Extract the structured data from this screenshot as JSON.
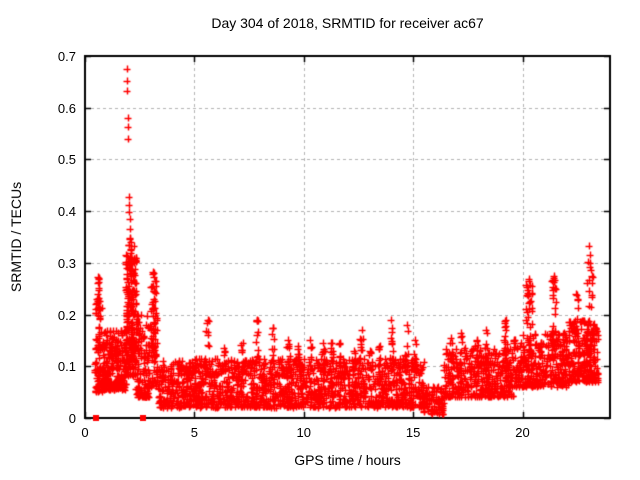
{
  "figure": {
    "background": "#ffffff",
    "text_color": "#000000"
  },
  "chart_data": {
    "type": "scatter",
    "title": "Day 304 of 2018, SRMTID for receiver ac67",
    "xlabel": "GPS time / hours",
    "ylabel": "SRMTID / TECUs",
    "xlim": [
      0,
      24
    ],
    "ylim": [
      0,
      0.7
    ],
    "xticks": [
      0,
      5,
      10,
      15,
      20
    ],
    "yticks": [
      0,
      0.1,
      0.2,
      0.3,
      0.4,
      0.5,
      0.6,
      0.7
    ],
    "grid": true,
    "legend": "none",
    "marker": "plus",
    "marker_color": "#ff0000",
    "grid_color": "#b4b4b4",
    "border_color": "#000000",
    "seed": 304,
    "outliers": [
      [
        1.93,
        0.675
      ],
      [
        1.94,
        0.651
      ],
      [
        1.94,
        0.632
      ],
      [
        1.96,
        0.581
      ],
      [
        1.97,
        0.562
      ],
      [
        1.98,
        0.539
      ],
      [
        2.01,
        0.428
      ],
      [
        2.02,
        0.412
      ],
      [
        2.02,
        0.398
      ],
      [
        2.04,
        0.384
      ],
      [
        2.05,
        0.366
      ],
      [
        2.06,
        0.349
      ],
      [
        2.07,
        0.347
      ],
      [
        2.08,
        0.327
      ],
      [
        2.09,
        0.324
      ],
      [
        2.1,
        0.307
      ],
      [
        2.12,
        0.297
      ],
      [
        0.58,
        0.272
      ],
      [
        0.6,
        0.262
      ],
      [
        0.62,
        0.247
      ],
      [
        0.59,
        0.231
      ],
      [
        0.63,
        0.215
      ],
      [
        3.12,
        0.283
      ],
      [
        3.16,
        0.272
      ],
      [
        20.28,
        0.268
      ],
      [
        20.33,
        0.258
      ],
      [
        20.24,
        0.247
      ],
      [
        21.42,
        0.274
      ],
      [
        21.47,
        0.252
      ],
      [
        21.38,
        0.237
      ],
      [
        22.93,
        0.262
      ],
      [
        22.98,
        0.302
      ],
      [
        23.02,
        0.332
      ],
      [
        23.07,
        0.316
      ],
      [
        23.12,
        0.287
      ]
    ],
    "zero_squares": [
      [
        0.5,
        0
      ],
      [
        2.65,
        0
      ]
    ],
    "bands": [
      {
        "x0": 0.45,
        "x1": 0.8,
        "n": 70,
        "lo": 0.05,
        "hi": 0.25,
        "skew": 1.6
      },
      {
        "x0": 0.8,
        "x1": 1.9,
        "n": 230,
        "lo": 0.055,
        "hi": 0.17,
        "skew": 1.8
      },
      {
        "x0": 1.85,
        "x1": 2.35,
        "n": 170,
        "lo": 0.08,
        "hi": 0.32,
        "skew": 1.3
      },
      {
        "x0": 2.35,
        "x1": 3.0,
        "n": 120,
        "lo": 0.04,
        "hi": 0.2,
        "skew": 1.8
      },
      {
        "x0": 3.0,
        "x1": 3.35,
        "n": 60,
        "lo": 0.06,
        "hi": 0.27,
        "skew": 1.4
      },
      {
        "x0": 3.35,
        "x1": 5.0,
        "n": 210,
        "lo": 0.02,
        "hi": 0.11,
        "skew": 1.5
      },
      {
        "x0": 5.0,
        "x1": 15.5,
        "n": 1250,
        "lo": 0.02,
        "hi": 0.115,
        "skew": 1.4
      },
      {
        "x0": 15.4,
        "x1": 16.4,
        "n": 90,
        "lo": 0.008,
        "hi": 0.06,
        "skew": 1.3
      },
      {
        "x0": 16.4,
        "x1": 19.6,
        "n": 380,
        "lo": 0.04,
        "hi": 0.135,
        "skew": 1.5
      },
      {
        "x0": 19.6,
        "x1": 22.1,
        "n": 330,
        "lo": 0.06,
        "hi": 0.165,
        "skew": 1.5
      },
      {
        "x0": 22.1,
        "x1": 23.45,
        "n": 240,
        "lo": 0.07,
        "hi": 0.19,
        "skew": 1.5
      }
    ],
    "spikes": [
      {
        "x": 0.62,
        "top": 0.27,
        "n": 16,
        "w": 0.12,
        "base": 0.08
      },
      {
        "x": 2.1,
        "top": 0.34,
        "n": 30,
        "w": 0.3,
        "base": 0.12
      },
      {
        "x": 3.15,
        "top": 0.28,
        "n": 20,
        "w": 0.18,
        "base": 0.1
      },
      {
        "x": 5.6,
        "top": 0.19,
        "n": 12
      },
      {
        "x": 6.35,
        "top": 0.135,
        "n": 8
      },
      {
        "x": 7.2,
        "top": 0.145,
        "n": 9
      },
      {
        "x": 7.85,
        "top": 0.19,
        "n": 10
      },
      {
        "x": 8.6,
        "top": 0.175,
        "n": 10
      },
      {
        "x": 9.3,
        "top": 0.15,
        "n": 8
      },
      {
        "x": 9.75,
        "top": 0.14,
        "n": 7
      },
      {
        "x": 10.3,
        "top": 0.15,
        "n": 8
      },
      {
        "x": 10.9,
        "top": 0.145,
        "n": 7
      },
      {
        "x": 11.3,
        "top": 0.145,
        "n": 8
      },
      {
        "x": 11.65,
        "top": 0.145,
        "n": 7
      },
      {
        "x": 12.3,
        "top": 0.13,
        "n": 7
      },
      {
        "x": 12.65,
        "top": 0.17,
        "n": 9
      },
      {
        "x": 13.05,
        "top": 0.13,
        "n": 7
      },
      {
        "x": 13.5,
        "top": 0.14,
        "n": 7
      },
      {
        "x": 14.0,
        "top": 0.19,
        "n": 12,
        "w": 0.2
      },
      {
        "x": 14.7,
        "top": 0.18,
        "n": 10,
        "w": 0.2
      },
      {
        "x": 15.1,
        "top": 0.15,
        "n": 7
      },
      {
        "x": 16.75,
        "top": 0.155,
        "n": 8
      },
      {
        "x": 17.2,
        "top": 0.165,
        "n": 9
      },
      {
        "x": 17.9,
        "top": 0.15,
        "n": 8
      },
      {
        "x": 18.35,
        "top": 0.17,
        "n": 9
      },
      {
        "x": 19.25,
        "top": 0.19,
        "n": 12,
        "w": 0.18
      },
      {
        "x": 20.3,
        "top": 0.265,
        "n": 26,
        "w": 0.3,
        "base": 0.12
      },
      {
        "x": 21.45,
        "top": 0.27,
        "n": 20,
        "w": 0.22,
        "base": 0.12
      },
      {
        "x": 22.45,
        "top": 0.24,
        "n": 15,
        "w": 0.3,
        "base": 0.11
      },
      {
        "x": 23.1,
        "top": 0.3,
        "n": 16,
        "w": 0.25,
        "base": 0.12
      }
    ]
  }
}
